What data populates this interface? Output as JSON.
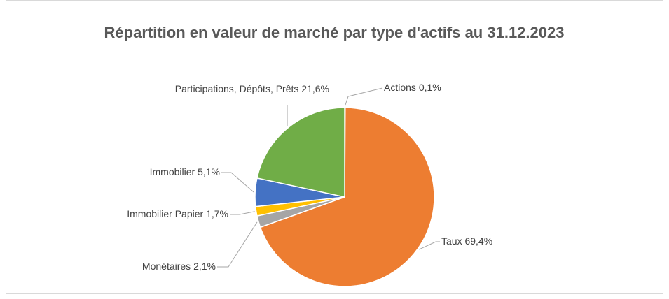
{
  "chart_data": {
    "type": "pie",
    "title": "Répartition en valeur de marché par type d'actifs au 31.12.2023",
    "categories": [
      "Actions",
      "Taux",
      "Monétaires",
      "Immobilier Papier",
      "Immobilier",
      "Participations, Dépôts, Prêts"
    ],
    "values": [
      0.1,
      69.4,
      2.1,
      1.7,
      5.1,
      21.6
    ],
    "value_labels": [
      "0,1%",
      "69,4%",
      "2,1%",
      "1,7%",
      "5,1%",
      "21,6%"
    ],
    "colors": [
      "#4472c4",
      "#ed7d31",
      "#a5a5a5",
      "#ffc000",
      "#4472c4",
      "#70ad47"
    ]
  }
}
